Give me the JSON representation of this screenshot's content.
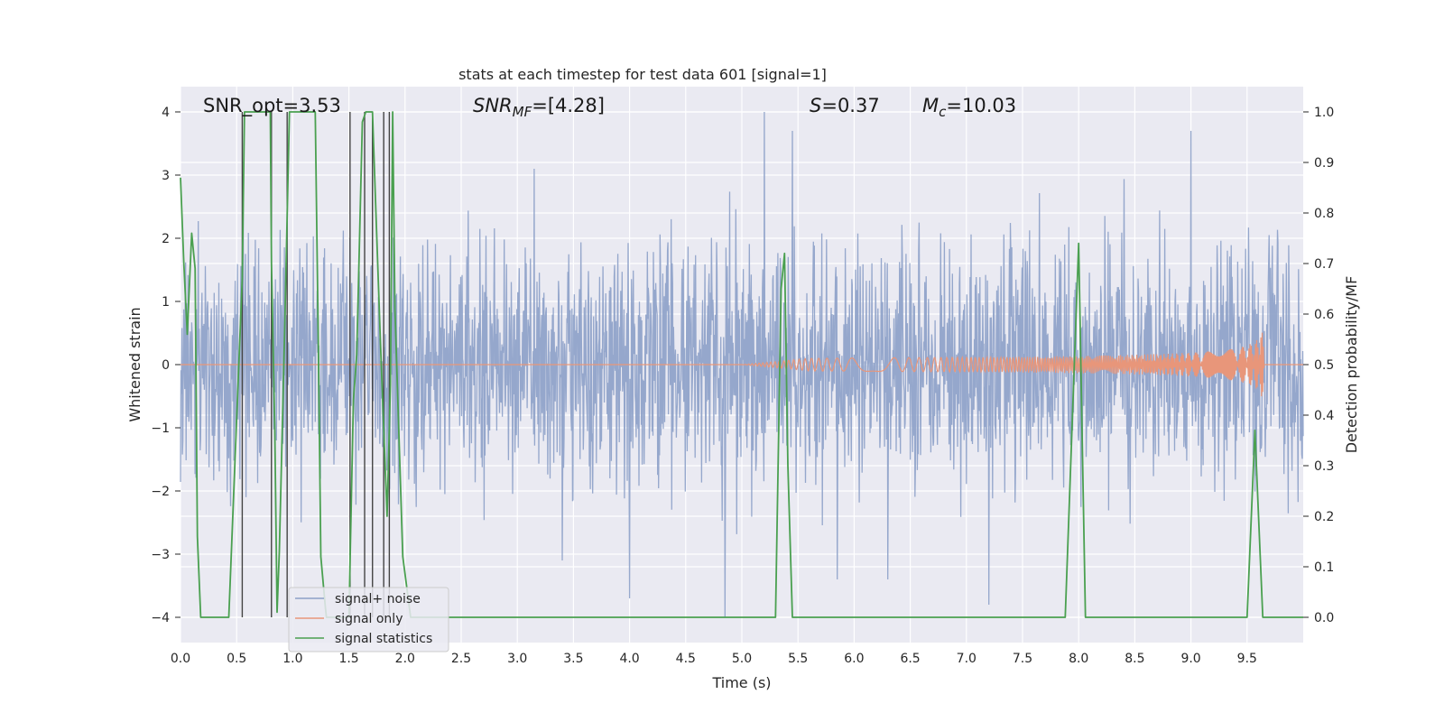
{
  "chart_data": {
    "type": "line",
    "title": "stats at each timestep for test data 601 [signal=1]",
    "xlabel": "Time (s)",
    "ylabel_left": "Whitened strain",
    "ylabel_right": "Detection probability/MF",
    "xlim": [
      0.0,
      10.0
    ],
    "ylim_left": [
      -4.4,
      4.4
    ],
    "ylim_right": [
      -0.05,
      1.05
    ],
    "xticks": [
      "0.0",
      "0.5",
      "1.0",
      "1.5",
      "2.0",
      "2.5",
      "3.0",
      "3.5",
      "4.0",
      "4.5",
      "5.0",
      "5.5",
      "6.0",
      "6.5",
      "7.0",
      "7.5",
      "8.0",
      "8.5",
      "9.0",
      "9.5"
    ],
    "yticks_left": [
      "4",
      "3",
      "2",
      "1",
      "0",
      "−1",
      "−2",
      "−3",
      "−4"
    ],
    "yticks_right": [
      "1.0",
      "0.9",
      "0.8",
      "0.7",
      "0.6",
      "0.5",
      "0.4",
      "0.3",
      "0.2",
      "0.1",
      "0.0"
    ],
    "grid": true,
    "legend_position": "lower-left",
    "annotations": {
      "snr_opt": "SNR_opt=3.53",
      "snr_mf_label": "SNR",
      "snr_mf_sub": "MF",
      "snr_mf_value": "=[4.28]",
      "s_label": "S",
      "s_value": "=0.37",
      "mc_label": "M",
      "mc_sub": "c",
      "mc_value": "=10.03"
    },
    "series": [
      {
        "name": "signal+ noise",
        "color": "#8ca0c8",
        "description_amplitude": 1.6,
        "peaks": [
          [
            3.15,
            3.1
          ],
          [
            5.2,
            4.0
          ],
          [
            5.45,
            3.7
          ],
          [
            9.0,
            3.7
          ],
          [
            4.85,
            -4.0
          ],
          [
            4.0,
            -3.7
          ],
          [
            7.2,
            -3.8
          ],
          [
            3.4,
            -3.1
          ],
          [
            5.85,
            -3.4
          ],
          [
            6.3,
            -3.4
          ]
        ]
      },
      {
        "name": "signal only",
        "color": "#e8967a",
        "chirp_start": 5.0,
        "chirp_end": 9.65,
        "final_amplitude": 0.65
      },
      {
        "name": "signal statistics",
        "color": "#4aa050",
        "axis": "right",
        "x": [
          0.0,
          0.03,
          0.06,
          0.1,
          0.13,
          0.15,
          0.18,
          0.43,
          0.55,
          0.57,
          0.63,
          0.8,
          0.81,
          0.84,
          0.86,
          0.88,
          0.93,
          0.97,
          1.0,
          1.2,
          1.23,
          1.25,
          1.29,
          1.3,
          1.5,
          1.54,
          1.57,
          1.62,
          1.65,
          1.71,
          1.78,
          1.84,
          1.87,
          1.89,
          1.91,
          1.98,
          2.05,
          5.3,
          5.35,
          5.38,
          5.41,
          5.45,
          7.88,
          8.0,
          8.06,
          9.5,
          9.57,
          9.64,
          10.0
        ],
        "y": [
          0.87,
          0.7,
          0.56,
          0.76,
          0.69,
          0.16,
          0.0,
          0.0,
          0.67,
          1.0,
          1.0,
          1.0,
          0.7,
          0.37,
          0.01,
          0.13,
          0.59,
          1.0,
          1.0,
          1.0,
          0.5,
          0.12,
          0.02,
          0.0,
          0.0,
          0.43,
          0.52,
          0.98,
          1.0,
          1.0,
          0.55,
          0.2,
          0.46,
          1.0,
          0.61,
          0.12,
          0.0,
          0.0,
          0.65,
          0.72,
          0.3,
          0.0,
          0.0,
          0.74,
          0.0,
          0.0,
          0.37,
          0.0,
          0.0
        ]
      },
      {
        "name": "dark vertical markers",
        "color": "#444444",
        "x": [
          0.55,
          0.81,
          0.95,
          1.51,
          1.64,
          1.71,
          1.81,
          1.86
        ]
      }
    ]
  }
}
